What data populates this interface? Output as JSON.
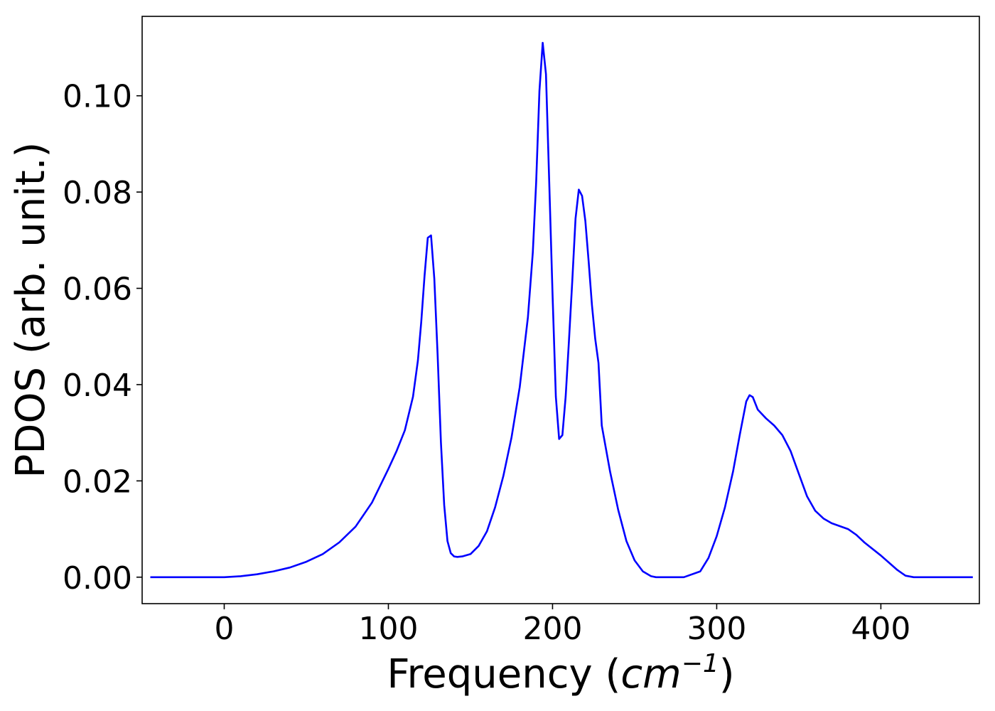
{
  "chart_data": {
    "type": "line",
    "title": "",
    "xlabel": "Frequency",
    "xlabel_unit_base": "cm",
    "xlabel_unit_exp": "−1",
    "ylabel": "PDOS (arb. unit.)",
    "xlim": [
      -50,
      460
    ],
    "ylim": [
      -0.0055,
      0.1165
    ],
    "xticks": [
      0,
      100,
      200,
      300,
      400
    ],
    "xtick_labels": [
      "0",
      "100",
      "200",
      "300",
      "400"
    ],
    "yticks": [
      0.0,
      0.02,
      0.04,
      0.06,
      0.08,
      0.1
    ],
    "ytick_labels": [
      "0.00",
      "0.02",
      "0.04",
      "0.06",
      "0.08",
      "0.10"
    ],
    "grid": false,
    "series": [
      {
        "color": "#0000ff",
        "x": [
          -45,
          0,
          10,
          20,
          30,
          40,
          50,
          60,
          70,
          80,
          90,
          100,
          105,
          110,
          115,
          118,
          120,
          122,
          124,
          126,
          128,
          130,
          132,
          134,
          136,
          138,
          140,
          142,
          145,
          150,
          155,
          160,
          165,
          170,
          175,
          180,
          185,
          188,
          190,
          192,
          194,
          196,
          198,
          200,
          202,
          204,
          206,
          208,
          210,
          212,
          214,
          216,
          218,
          220,
          222,
          224,
          226,
          228,
          230,
          235,
          240,
          245,
          250,
          255,
          260,
          263,
          266,
          270,
          280,
          290,
          295,
          300,
          305,
          310,
          314,
          318,
          320,
          322,
          325,
          330,
          335,
          340,
          345,
          350,
          355,
          360,
          365,
          370,
          380,
          385,
          390,
          400,
          405,
          410,
          415,
          420,
          430,
          456
        ],
        "y": [
          0.0,
          0.0,
          0.0002,
          0.0006,
          0.0012,
          0.002,
          0.0032,
          0.0048,
          0.0072,
          0.0105,
          0.0155,
          0.0225,
          0.0262,
          0.0305,
          0.0375,
          0.045,
          0.053,
          0.0625,
          0.0705,
          0.071,
          0.062,
          0.046,
          0.028,
          0.015,
          0.0075,
          0.005,
          0.0043,
          0.0042,
          0.0043,
          0.0048,
          0.0065,
          0.0095,
          0.0145,
          0.021,
          0.029,
          0.0395,
          0.054,
          0.0675,
          0.082,
          0.101,
          0.111,
          0.1045,
          0.082,
          0.0585,
          0.0375,
          0.0287,
          0.0295,
          0.0375,
          0.049,
          0.0615,
          0.0745,
          0.0805,
          0.0792,
          0.074,
          0.0655,
          0.0565,
          0.0495,
          0.0445,
          0.0315,
          0.022,
          0.014,
          0.0075,
          0.0035,
          0.0012,
          0.0002,
          0.0,
          0.0,
          0.0,
          0.0,
          0.0012,
          0.004,
          0.0085,
          0.0145,
          0.022,
          0.0295,
          0.0365,
          0.0378,
          0.0374,
          0.0348,
          0.033,
          0.0315,
          0.0295,
          0.0262,
          0.0215,
          0.0168,
          0.0138,
          0.0122,
          0.0112,
          0.01,
          0.0088,
          0.0072,
          0.0045,
          0.003,
          0.0015,
          0.0003,
          0.0,
          0.0,
          0.0
        ]
      }
    ]
  }
}
